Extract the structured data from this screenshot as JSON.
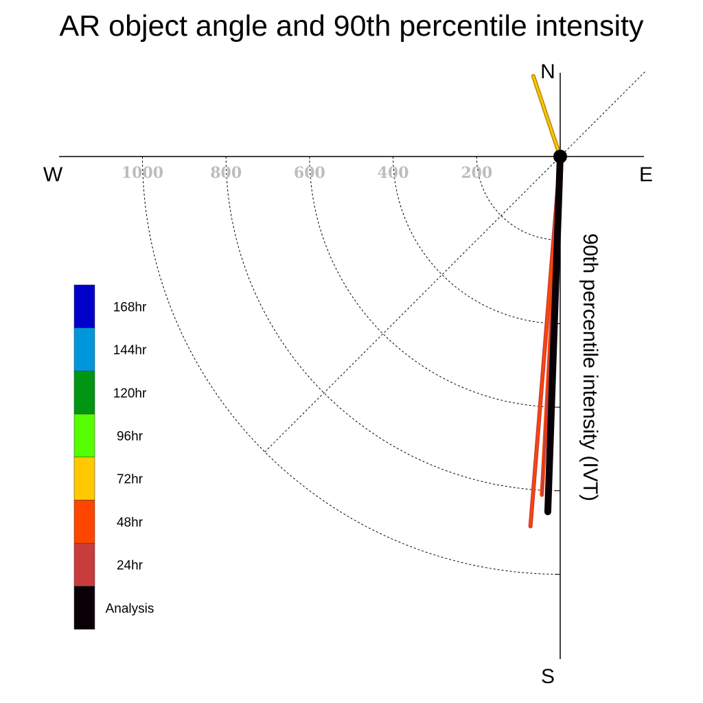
{
  "title": "AR object angle and 90th percentile intensity",
  "chart_data": {
    "type": "polar-vector",
    "title": "AR object angle and 90th percentile intensity",
    "radial_label": "90th percentile intensity (IVT)",
    "radial_ticks": [
      200,
      400,
      600,
      800,
      1000
    ],
    "radial_max": 1200,
    "compass": {
      "north": "N",
      "south": "S",
      "east": "E",
      "west": "W"
    },
    "legend": [
      {
        "label": "168hr",
        "color": "#0000c8"
      },
      {
        "label": "144hr",
        "color": "#0096dc"
      },
      {
        "label": "120hr",
        "color": "#009614"
      },
      {
        "label": "96hr",
        "color": "#55ff00"
      },
      {
        "label": "72hr",
        "color": "#ffc800"
      },
      {
        "label": "48hr",
        "color": "#ff4600"
      },
      {
        "label": "24hr",
        "color": "#c83c3c"
      },
      {
        "label": "Analysis",
        "color": "#0a0008"
      }
    ],
    "vectors": [
      {
        "series": "72hr",
        "color": "#ffc800",
        "outline": "#b08800",
        "bearing_deg": 341.5,
        "intensity": 203
      },
      {
        "series": "48hr",
        "color": "#ff4600",
        "outline": "#c83c3c",
        "bearing_deg": 184.6,
        "intensity": 888
      },
      {
        "series": "24hr",
        "color": "#c83c3c",
        "outline": "#ff4600",
        "bearing_deg": 183.1,
        "intensity": 811
      },
      {
        "series": "Analysis",
        "color": "#0a0008",
        "outline": "#0a0008",
        "bearing_deg": 182.0,
        "intensity": 851
      }
    ],
    "grid": true,
    "legend_position": "left"
  }
}
